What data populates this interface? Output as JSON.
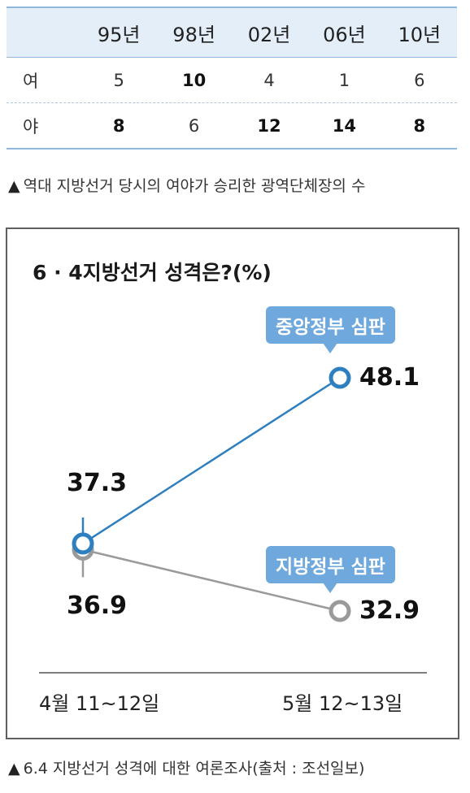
{
  "table": {
    "columns": [
      "95년",
      "98년",
      "02년",
      "06년",
      "10년"
    ],
    "rows": [
      {
        "label": "여",
        "values": [
          "5",
          "10",
          "4",
          "1",
          "6"
        ]
      },
      {
        "label": "야",
        "values": [
          "8",
          "6",
          "12",
          "14",
          "8"
        ]
      }
    ],
    "caption": "역대 지방선거 당시의 여야가 승리한 광역단체장의 수"
  },
  "chart_caption": "6.4 지방선거 성격에 대한 여론조사(출처 : 조선일보)",
  "chart_data": {
    "type": "line",
    "title": "6 · 4지방선거 성격은?(%)",
    "x": [
      "4월 11~12일",
      "5월 12~13일"
    ],
    "series": [
      {
        "name": "중앙정부 심판",
        "values": [
          37.3,
          48.1
        ],
        "color": "#2e7fc0"
      },
      {
        "name": "지방정부 심판",
        "values": [
          36.9,
          32.9
        ],
        "color": "#9a9a9a"
      }
    ],
    "value_labels": [
      [
        "37.3",
        "48.1"
      ],
      [
        "36.9",
        "32.9"
      ]
    ],
    "ylim": [
      25,
      55
    ],
    "grid": false,
    "legend": "callouts"
  },
  "triangle_glyph": "▲"
}
